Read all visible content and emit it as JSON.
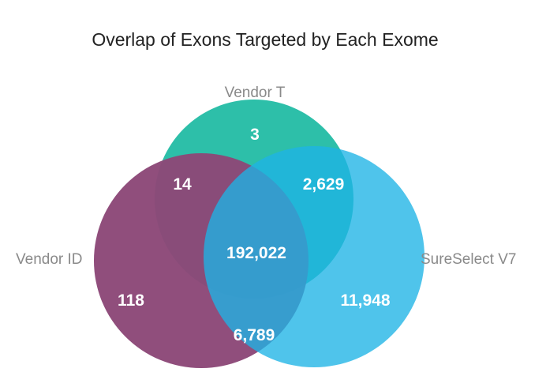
{
  "title": "Overlap of Exons Targeted by Each Exome",
  "sets": {
    "vendor_t": {
      "label": "Vendor T",
      "color": "#2dbfa9"
    },
    "vendor_id": {
      "label": "Vendor ID",
      "color": "#8c4878"
    },
    "sureselect_v7": {
      "label": "SureSelect V7",
      "color": "#1eb3e6"
    }
  },
  "regions": {
    "t_only": "3",
    "t_id": "14",
    "t_ss": "2,629",
    "all_three": "192,022",
    "id_only": "118",
    "ss_only": "11,948",
    "id_ss": "6,789"
  }
}
